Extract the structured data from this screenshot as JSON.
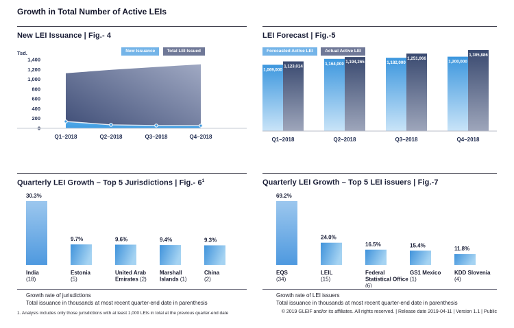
{
  "page": {
    "title": "Growth in Total Number of Active LEIs",
    "footnote": "1. Analysis includes only those jurisdictions with at least 1,000 LEIs in total at the previous quarter-end date",
    "copyright": "© 2019 GLEIF and/or its affiliates. All rights reserved.  |  Release date 2019-04-11  |  Version 1.1  |  Public"
  },
  "colors": {
    "area_light_top": "#54ABE8",
    "area_light_bottom": "#3E9BE1",
    "area_dark_start": "#46547C",
    "area_dark_end": "#A0A9C3",
    "forecast_bar_top": "#3D97DE",
    "forecast_bar_bottom": "#C9E4F8",
    "actual_bar_top": "#3A4A70",
    "actual_bar_bottom": "#9EA6BB",
    "rank_bar_tall_top": "#9CC7EE",
    "rank_bar_tall_bottom": "#4E99DF",
    "rank_bar_short_start": "#4093DB",
    "rank_bar_short_end": "#A5D3F2",
    "chip_light": "#74B4E8",
    "chip_dark": "#6F7897",
    "axis_text": "#1F2B4F"
  },
  "chart_data": [
    {
      "id": "fig4",
      "type": "area",
      "title": "New LEI Issuance  |  Fig.- 4",
      "ylabel": "Tsd.",
      "categories": [
        "Q1–2018",
        "Q2–2018",
        "Q3–2018",
        "Q4–2018"
      ],
      "series": [
        {
          "name": "New Issuance",
          "values": [
            140,
            71,
            57,
            55
          ]
        },
        {
          "name": "Total LEI Issued",
          "values": [
            1123,
            1194,
            1251,
            1306
          ]
        }
      ],
      "ylim": [
        0,
        1400
      ],
      "yticks": [
        "0",
        "200",
        "400",
        "600",
        "800",
        "1,000",
        "1,200",
        "1,400"
      ],
      "legend_position": "top-right",
      "grid": false
    },
    {
      "id": "fig5",
      "type": "bar",
      "title": "LEI Forecast  |  Fig.-5",
      "categories": [
        "Q1–2018",
        "Q2–2018",
        "Q3–2018",
        "Q4–2018"
      ],
      "series": [
        {
          "name": "Forecasted Active LEI",
          "values": [
            1069000,
            1164000,
            1182000,
            1200000
          ],
          "labels": [
            "1,069,000",
            "1,164,000",
            "1,182,000",
            "1,200,000"
          ]
        },
        {
          "name": "Actual Active LEI",
          "values": [
            1123014,
            1194265,
            1251066,
            1305886
          ],
          "labels": [
            "1,123,014",
            "1,194,265",
            "1,251,066",
            "1,305,886"
          ]
        }
      ],
      "legend_position": "top-left",
      "grid": false
    },
    {
      "id": "fig6",
      "type": "bar",
      "title": "Quarterly LEI Growth – Top 5 Jurisdictions  |  Fig.- 6",
      "title_superscript": "1",
      "values": [
        30.3,
        9.7,
        9.6,
        9.4,
        9.3
      ],
      "value_labels": [
        "30.3%",
        "9.7%",
        "9.6%",
        "9.4%",
        "9.3%"
      ],
      "categories": [
        "India (18)",
        "Estonia (5)",
        "United Arab Emirates (2)",
        "Marshall Islands (1)",
        "China (2)"
      ],
      "category_lines": [
        [
          "India",
          "(18)"
        ],
        [
          "Estonia",
          "(5)"
        ],
        [
          "United Arab",
          "Emirates (2)"
        ],
        [
          "Marshall",
          "Islands (1)"
        ],
        [
          "China",
          "(2)"
        ]
      ],
      "notes": [
        "Growth rate of jurisdictions",
        "Total issuance in thousands at most recent quarter-end date in parenthesis"
      ],
      "grid": false
    },
    {
      "id": "fig7",
      "type": "bar",
      "title": "Quarterly LEI Growth – Top 5 LEI issuers  |  Fig.-7",
      "values": [
        69.2,
        24.0,
        16.5,
        15.4,
        11.8
      ],
      "value_labels": [
        "69.2%",
        "24.0%",
        "16.5%",
        "15.4%",
        "11.8%"
      ],
      "categories": [
        "EQS (34)",
        "LEIL (15)",
        "Federal Statistical Office (6)",
        "GS1 Mexico (1)",
        "KDD Slovenia (4)"
      ],
      "category_lines": [
        [
          "EQS",
          "(34)"
        ],
        [
          "LEIL",
          "(15)"
        ],
        [
          "Federal",
          "Statistical Office",
          "(6)"
        ],
        [
          "GS1 Mexico",
          "(1)"
        ],
        [
          "KDD Slovenia",
          "(4)"
        ]
      ],
      "notes": [
        "Growth rate of LEI issuers",
        "Total issuance in thousands at most recent quarter-end date in parenthesis"
      ],
      "grid": false
    }
  ]
}
